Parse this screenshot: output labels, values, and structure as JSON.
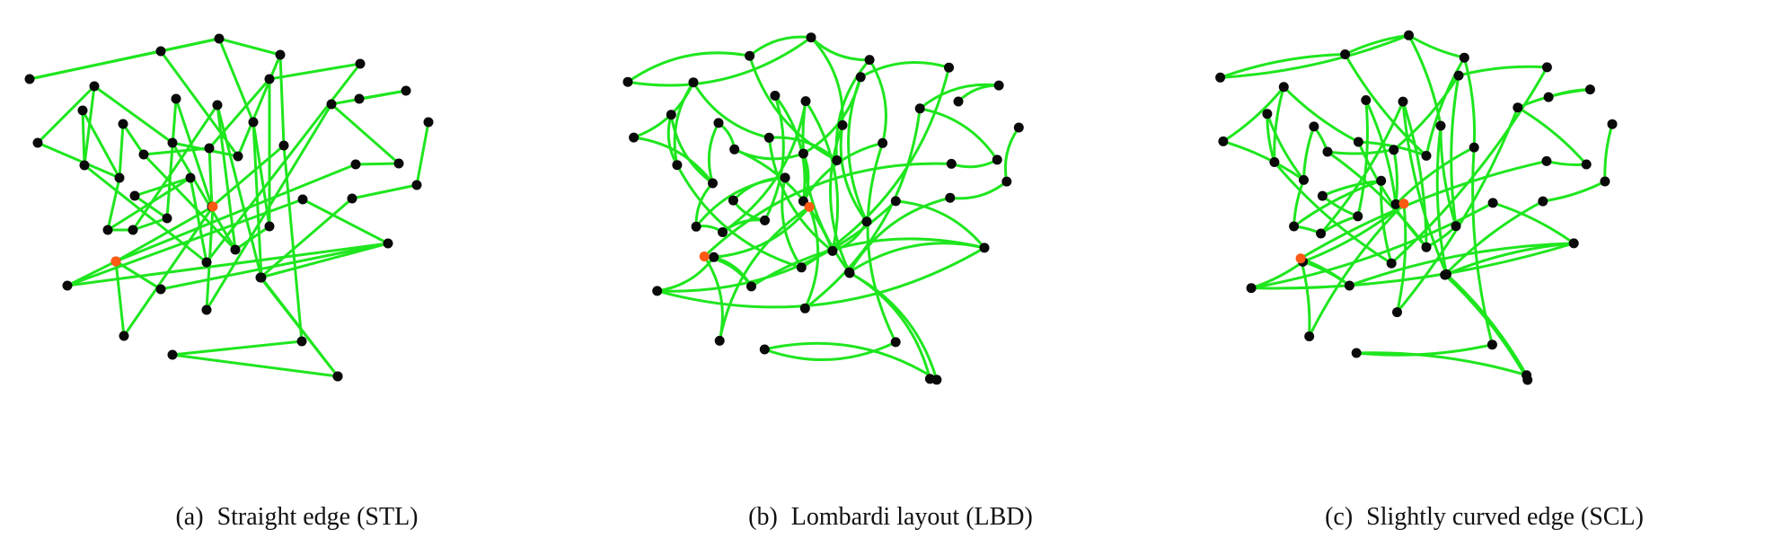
{
  "figure": {
    "panels": [
      {
        "id": "a",
        "sub_label": "(a)",
        "caption": "Straight edge (STL)",
        "edge_style": "straight"
      },
      {
        "id": "b",
        "sub_label": "(b)",
        "caption": "Lombardi layout (LBD)",
        "edge_style": "lombardi"
      },
      {
        "id": "c",
        "sub_label": "(c)",
        "caption": "Slightly curved edge (SCL)",
        "edge_style": "slight"
      }
    ]
  },
  "colors": {
    "edge": "#1ee61e",
    "node": "#0a0a0a",
    "highlight_node": "#ff5a14"
  },
  "graph": {
    "node_count": 52,
    "highlighted_nodes": [
      33,
      39
    ],
    "edges": [
      [
        0,
        13
      ],
      [
        0,
        14
      ],
      [
        13,
        14
      ],
      [
        13,
        19
      ],
      [
        14,
        21
      ],
      [
        14,
        24
      ],
      [
        19,
        24
      ],
      [
        21,
        28
      ],
      [
        28,
        30
      ],
      [
        30,
        31
      ],
      [
        1,
        5
      ],
      [
        5,
        6
      ],
      [
        5,
        7
      ],
      [
        2,
        5
      ],
      [
        7,
        9
      ],
      [
        9,
        16
      ],
      [
        16,
        20
      ],
      [
        16,
        25
      ],
      [
        20,
        26
      ],
      [
        26,
        29
      ],
      [
        29,
        31
      ],
      [
        4,
        12
      ],
      [
        12,
        19
      ],
      [
        12,
        22
      ],
      [
        17,
        22
      ],
      [
        22,
        23
      ],
      [
        23,
        25
      ],
      [
        10,
        17
      ],
      [
        10,
        11
      ],
      [
        11,
        15
      ],
      [
        15,
        20
      ],
      [
        27,
        32
      ],
      [
        25,
        32
      ],
      [
        3,
        27
      ],
      [
        8,
        18
      ],
      [
        18,
        27
      ],
      [
        34,
        35
      ],
      [
        35,
        40
      ],
      [
        41,
        42
      ],
      [
        42,
        43
      ],
      [
        3,
        4
      ],
      [
        8,
        11
      ],
      [
        33,
        34
      ],
      [
        33,
        38
      ],
      [
        33,
        37
      ],
      [
        38,
        39
      ],
      [
        39,
        44
      ],
      [
        36,
        39
      ],
      [
        34,
        36
      ],
      [
        44,
        45
      ],
      [
        36,
        49
      ],
      [
        46,
        47
      ],
      [
        47,
        48
      ],
      [
        48,
        50
      ],
      [
        50,
        51
      ],
      [
        49,
        50
      ],
      [
        40,
        49
      ],
      [
        37,
        43
      ],
      [
        43,
        45
      ],
      [
        2,
        3
      ],
      [
        6,
        10
      ],
      [
        1,
        4
      ],
      [
        9,
        22
      ],
      [
        17,
        28
      ],
      [
        6,
        18
      ],
      [
        21,
        23
      ],
      [
        24,
        26
      ],
      [
        35,
        49
      ]
    ]
  }
}
